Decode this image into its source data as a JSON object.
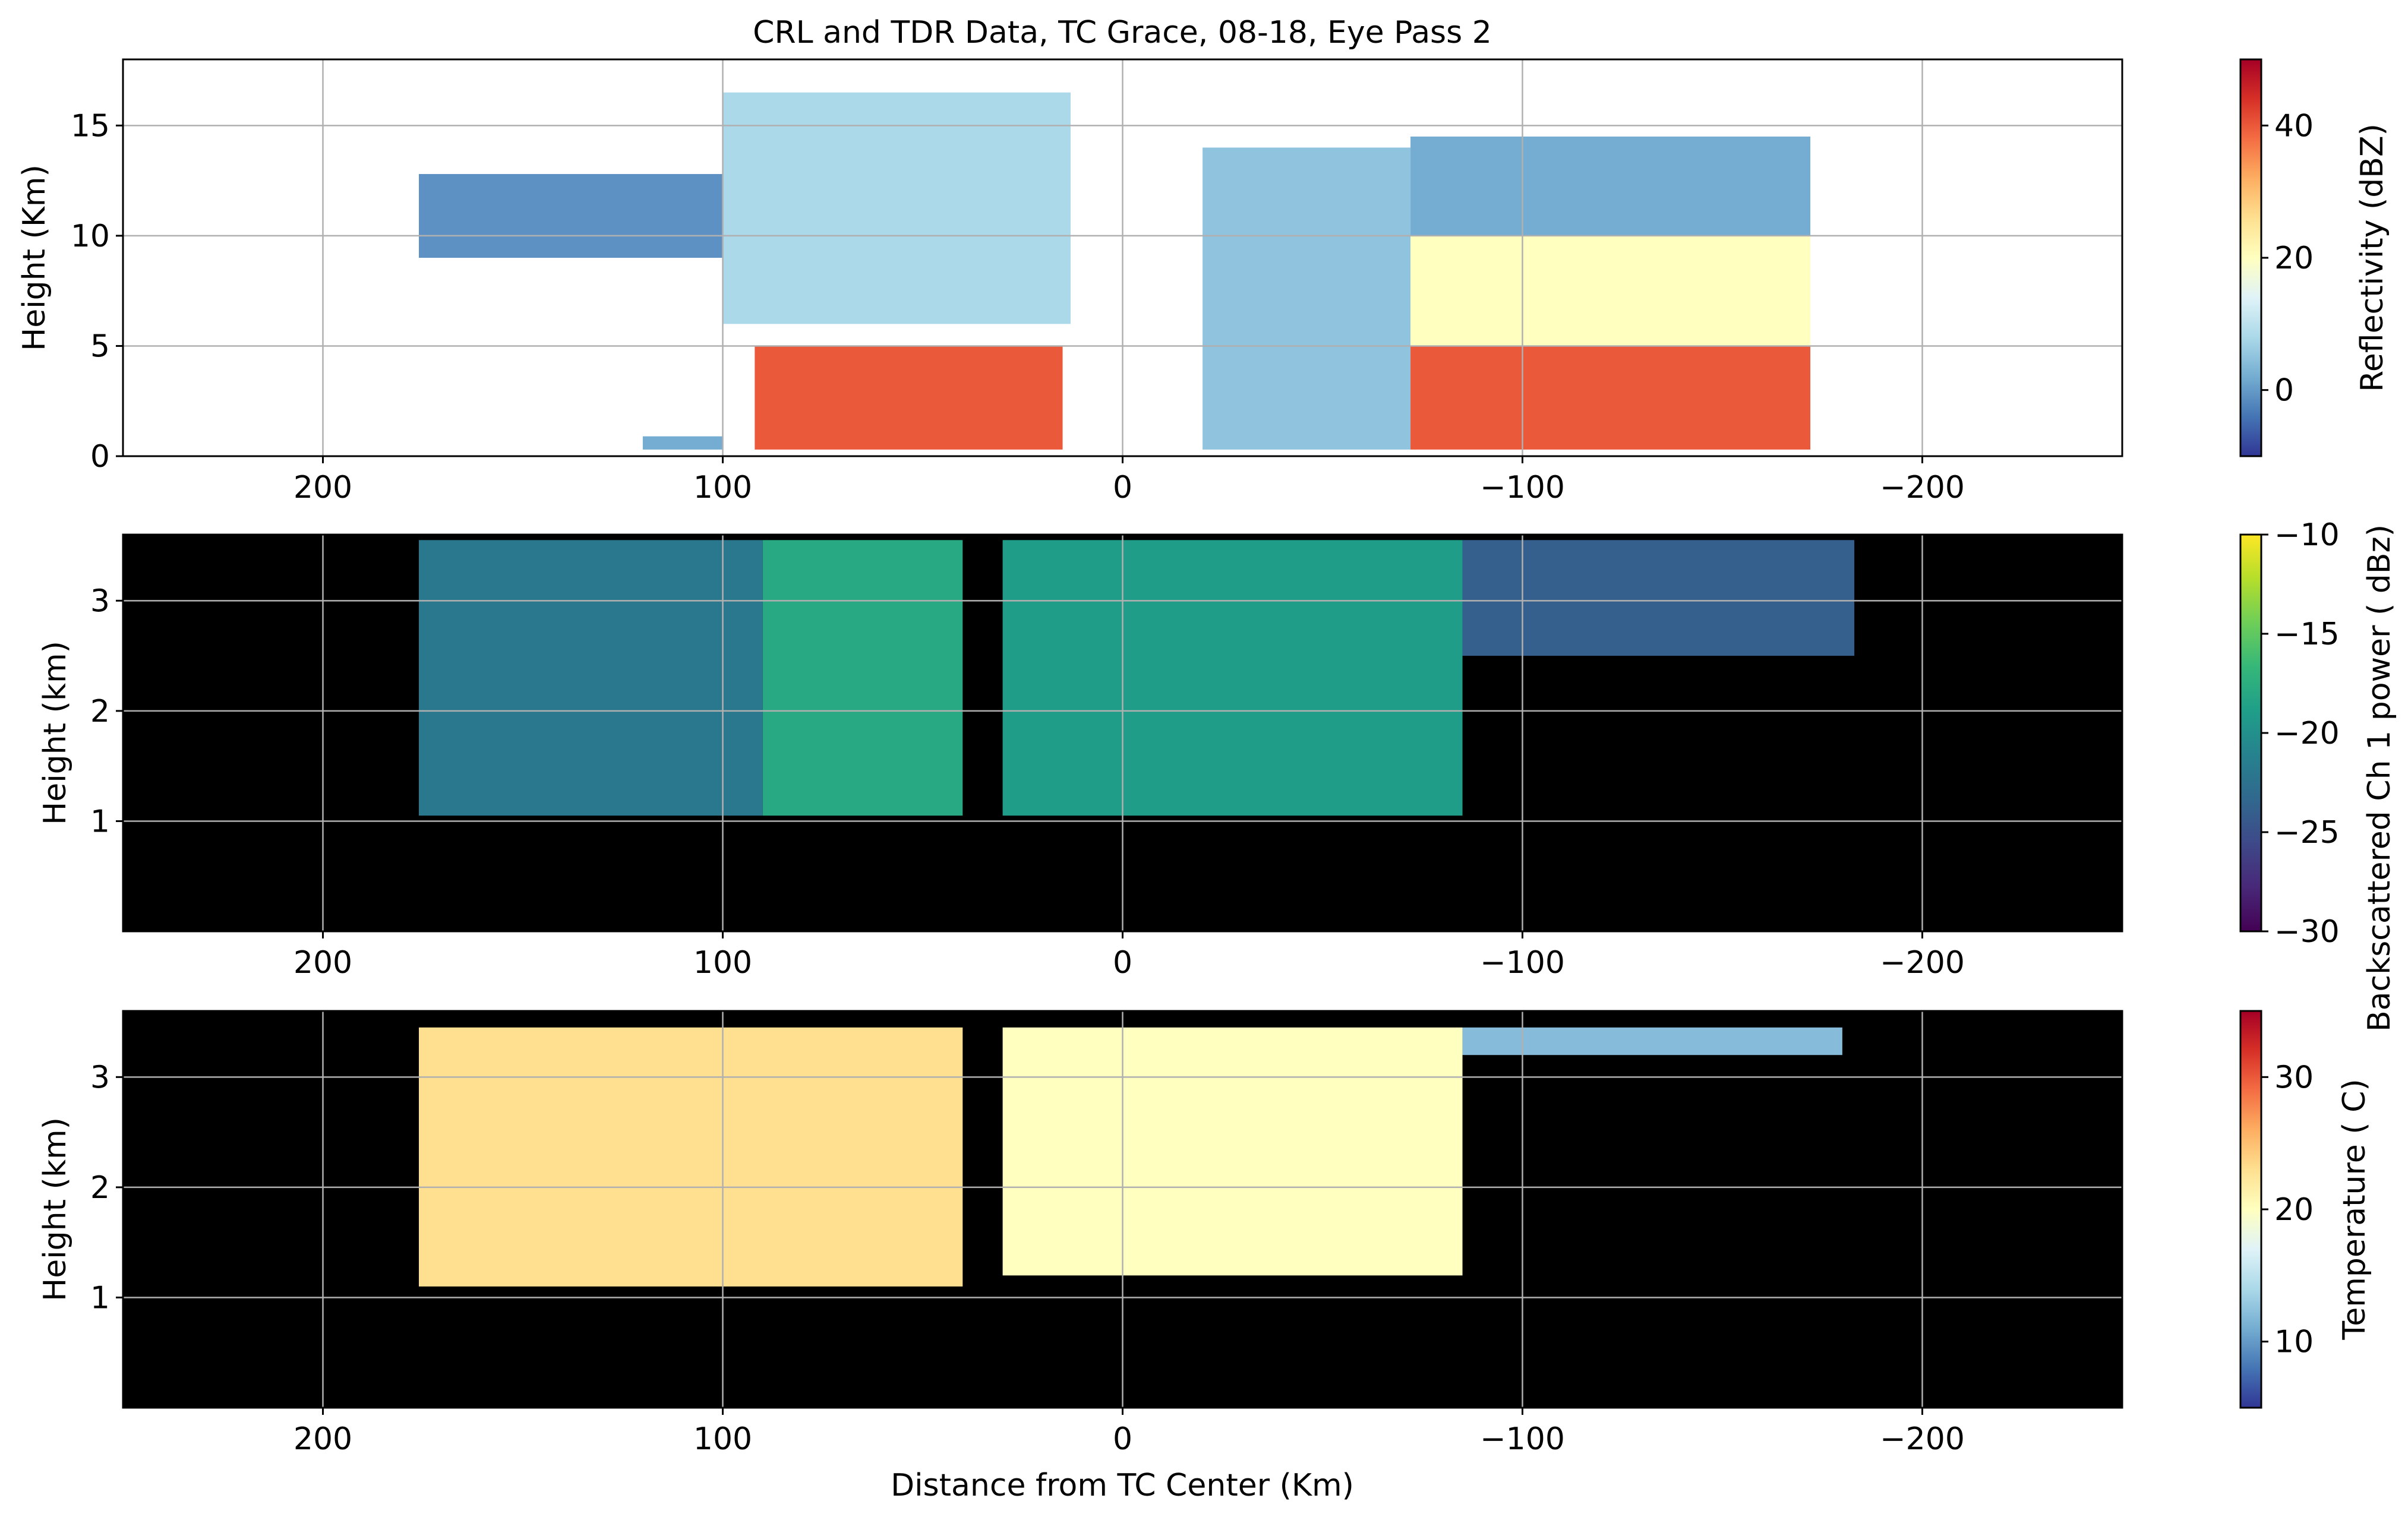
{
  "title": "CRL and TDR Data, TC Grace, 08-18, Eye Pass 2",
  "chart_data": [
    {
      "type": "heatmap",
      "ylabel": "Height (Km)",
      "xlabel": "",
      "xlim": [
        250,
        -250
      ],
      "ylim": [
        0,
        18
      ],
      "xticks": [
        200,
        100,
        0,
        -100,
        -200
      ],
      "xtick_labels": [
        "200",
        "100",
        "0",
        "−100",
        "−200"
      ],
      "yticks": [
        0,
        5,
        10,
        15
      ],
      "ytick_labels": [
        "0",
        "5",
        "10",
        "15"
      ],
      "grid": true,
      "background": "#ffffff",
      "colorbar": {
        "label": "Reflectivity (dBZ)",
        "range": [
          -10,
          50
        ],
        "ticks": [
          0,
          20,
          40
        ],
        "tick_labels": [
          "0",
          "20",
          "40"
        ],
        "colormap": [
          "#313695",
          "#4575b4",
          "#74add1",
          "#abd9e9",
          "#e0f3f8",
          "#ffffbf",
          "#fee090",
          "#fdae61",
          "#f46d43",
          "#d73027",
          "#a50026"
        ]
      },
      "regions": [
        {
          "x_from": 176,
          "x_to": 90,
          "y_from": 9,
          "y_to": 12.8,
          "value": -1
        },
        {
          "x_from": 100,
          "x_to": 13,
          "y_from": 6,
          "y_to": 16.5,
          "value": 8
        },
        {
          "x_from": 92,
          "x_to": 15,
          "y_from": 0.3,
          "y_to": 5,
          "value": 40
        },
        {
          "x_from": 120,
          "x_to": 100,
          "y_from": 0.3,
          "y_to": 0.9,
          "value": 2
        },
        {
          "x_from": -20,
          "x_to": -72,
          "y_from": 0.3,
          "y_to": 14,
          "value": 5
        },
        {
          "x_from": -72,
          "x_to": -172,
          "y_from": 10,
          "y_to": 14.5,
          "value": 2
        },
        {
          "x_from": -72,
          "x_to": -172,
          "y_from": 5,
          "y_to": 10,
          "value": 20
        },
        {
          "x_from": -72,
          "x_to": -172,
          "y_from": 0.3,
          "y_to": 5,
          "value": 40
        }
      ]
    },
    {
      "type": "heatmap",
      "ylabel": "Height (km)",
      "xlabel": "",
      "xlim": [
        250,
        -250
      ],
      "ylim": [
        0,
        3.6
      ],
      "xticks": [
        200,
        100,
        0,
        -100,
        -200
      ],
      "xtick_labels": [
        "200",
        "100",
        "0",
        "−100",
        "−200"
      ],
      "yticks": [
        1,
        2,
        3
      ],
      "ytick_labels": [
        "1",
        "2",
        "3"
      ],
      "grid": true,
      "background": "#000000",
      "colorbar": {
        "label": "Backscattered Ch 1 power ( dBz)",
        "range": [
          -30,
          -10
        ],
        "ticks": [
          -30,
          -25,
          -20,
          -15,
          -10
        ],
        "tick_labels": [
          "−30",
          "−25",
          "−20",
          "−15",
          "−10"
        ],
        "colormap": [
          "#440154",
          "#482878",
          "#3e4989",
          "#31688e",
          "#26828e",
          "#1f9e89",
          "#35b779",
          "#6ece58",
          "#b5de2b",
          "#fde725"
        ]
      },
      "regions": [
        {
          "x_from": 176,
          "x_to": 90,
          "y_from": 1.05,
          "y_to": 3.55,
          "value": -22
        },
        {
          "x_from": 90,
          "x_to": 40,
          "y_from": 1.05,
          "y_to": 3.55,
          "value": -18
        },
        {
          "x_from": 30,
          "x_to": -85,
          "y_from": 1.05,
          "y_to": 3.55,
          "value": -19
        },
        {
          "x_from": -85,
          "x_to": -183,
          "y_from": 2.5,
          "y_to": 3.55,
          "value": -24
        }
      ]
    },
    {
      "type": "heatmap",
      "ylabel": "Height (km)",
      "xlabel": "Distance from TC Center (Km)",
      "xlim": [
        250,
        -250
      ],
      "ylim": [
        0,
        3.6
      ],
      "xticks": [
        200,
        100,
        0,
        -100,
        -200
      ],
      "xtick_labels": [
        "200",
        "100",
        "0",
        "−100",
        "−200"
      ],
      "yticks": [
        1,
        2,
        3
      ],
      "ytick_labels": [
        "1",
        "2",
        "3"
      ],
      "grid": true,
      "background": "#000000",
      "colorbar": {
        "label": "Temperature ( C)",
        "range": [
          5,
          35
        ],
        "ticks": [
          10,
          20,
          30
        ],
        "tick_labels": [
          "10",
          "20",
          "30"
        ],
        "colormap": [
          "#313695",
          "#4575b4",
          "#74add1",
          "#abd9e9",
          "#e0f3f8",
          "#ffffbf",
          "#fee090",
          "#fdae61",
          "#f46d43",
          "#d73027",
          "#a50026"
        ]
      },
      "regions": [
        {
          "x_from": 176,
          "x_to": 40,
          "y_from": 1.1,
          "y_to": 3.45,
          "value": 23
        },
        {
          "x_from": 30,
          "x_to": -85,
          "y_from": 1.2,
          "y_to": 3.45,
          "value": 20
        },
        {
          "x_from": -85,
          "x_to": -180,
          "y_from": 3.2,
          "y_to": 3.45,
          "value": 12
        }
      ]
    }
  ]
}
